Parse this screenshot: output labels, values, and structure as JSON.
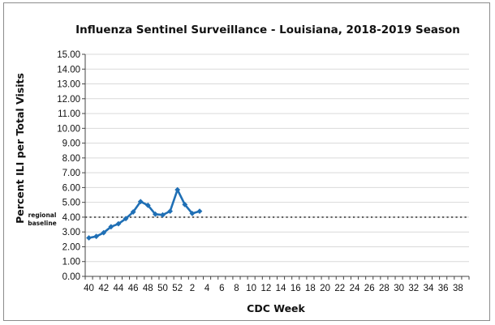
{
  "chart_data": {
    "type": "line",
    "title": "Influenza Sentinel Surveillance - Louisiana, 2018-2019 Season",
    "xlabel": "CDC Week",
    "ylabel": "Percent ILI per Total Visits",
    "ylim": [
      0,
      15
    ],
    "y_ticks": [
      "0.00",
      "1.00",
      "2.00",
      "3.00",
      "4.00",
      "5.00",
      "6.00",
      "7.00",
      "8.00",
      "9.00",
      "10.00",
      "11.00",
      "12.00",
      "13.00",
      "14.00",
      "15.00"
    ],
    "week_slots": [
      40,
      41,
      42,
      43,
      44,
      45,
      46,
      47,
      48,
      49,
      50,
      51,
      52,
      1,
      2,
      3,
      4,
      5,
      6,
      7,
      8,
      9,
      10,
      11,
      12,
      13,
      14,
      15,
      16,
      17,
      18,
      19,
      20,
      21,
      22,
      23,
      24,
      25,
      26,
      27,
      28,
      29,
      30,
      31,
      32,
      33,
      34,
      35,
      36,
      37,
      38,
      39
    ],
    "x_tick_labels": [
      "40",
      "42",
      "44",
      "46",
      "48",
      "50",
      "52",
      "2",
      "4",
      "6",
      "8",
      "10",
      "12",
      "14",
      "16",
      "18",
      "20",
      "22",
      "24",
      "26",
      "28",
      "30",
      "32",
      "34",
      "36",
      "38"
    ],
    "series": [
      {
        "name": "Percent ILI",
        "color": "#1f6fb5",
        "weeks": [
          40,
          41,
          42,
          43,
          44,
          45,
          46,
          47,
          48,
          49,
          50,
          51,
          52,
          1,
          2,
          3
        ],
        "values": [
          2.6,
          2.7,
          2.95,
          3.35,
          3.55,
          3.9,
          4.35,
          5.05,
          4.8,
          4.2,
          4.15,
          4.4,
          5.85,
          4.85,
          4.25,
          4.4
        ]
      }
    ],
    "baseline": {
      "label_line1": "regional",
      "label_line2": "baseline",
      "value": 4.0,
      "color": "#666666"
    }
  }
}
